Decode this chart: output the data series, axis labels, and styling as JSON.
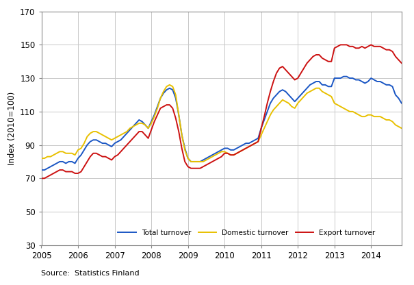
{
  "title": "",
  "ylabel": "Index (2010=100)",
  "source_text": "Source:  Statistics Finland",
  "xlim": [
    2005.0,
    2014.833
  ],
  "ylim": [
    30,
    170
  ],
  "yticks": [
    30,
    50,
    70,
    90,
    110,
    130,
    150,
    170
  ],
  "xticks": [
    2005,
    2006,
    2007,
    2008,
    2009,
    2010,
    2011,
    2012,
    2013,
    2014
  ],
  "grid_color": "#c8c8c8",
  "bg_color": "#ffffff",
  "colors": {
    "total": "#1a56c4",
    "domestic": "#e8c000",
    "export": "#cc1111"
  },
  "linewidth": 1.4,
  "legend_labels": [
    "Total turnover",
    "Domestic turnover",
    "Export turnover"
  ],
  "total_turnover": [
    75,
    75,
    76,
    77,
    78,
    79,
    80,
    80,
    79,
    80,
    80,
    79,
    82,
    84,
    87,
    90,
    92,
    93,
    93,
    92,
    91,
    91,
    90,
    89,
    91,
    92,
    93,
    95,
    97,
    99,
    101,
    103,
    105,
    104,
    102,
    100,
    104,
    108,
    113,
    118,
    121,
    123,
    124,
    123,
    118,
    108,
    96,
    88,
    82,
    80,
    80,
    80,
    80,
    81,
    82,
    83,
    84,
    85,
    86,
    87,
    88,
    88,
    87,
    87,
    88,
    89,
    90,
    91,
    91,
    92,
    93,
    94,
    100,
    105,
    110,
    115,
    118,
    120,
    122,
    123,
    122,
    120,
    118,
    116,
    118,
    120,
    122,
    124,
    126,
    127,
    128,
    128,
    126,
    126,
    125,
    125,
    130,
    130,
    130,
    131,
    131,
    130,
    130,
    129,
    129,
    128,
    127,
    128,
    130,
    129,
    128,
    128,
    127,
    126,
    126,
    125,
    120,
    118,
    115,
    113
  ],
  "domestic_turnover": [
    82,
    82,
    83,
    83,
    84,
    85,
    86,
    86,
    85,
    85,
    85,
    84,
    87,
    88,
    91,
    95,
    97,
    98,
    98,
    97,
    96,
    95,
    94,
    93,
    94,
    95,
    96,
    97,
    98,
    100,
    101,
    102,
    103,
    103,
    102,
    100,
    103,
    107,
    112,
    118,
    122,
    125,
    126,
    125,
    120,
    108,
    96,
    87,
    82,
    80,
    80,
    80,
    80,
    80,
    81,
    82,
    83,
    84,
    85,
    86,
    86,
    85,
    84,
    84,
    85,
    86,
    87,
    88,
    89,
    90,
    91,
    92,
    96,
    100,
    104,
    108,
    111,
    113,
    115,
    117,
    116,
    115,
    113,
    112,
    115,
    117,
    119,
    121,
    122,
    123,
    124,
    124,
    122,
    121,
    120,
    119,
    115,
    114,
    113,
    112,
    111,
    110,
    110,
    109,
    108,
    107,
    107,
    108,
    108,
    107,
    107,
    107,
    106,
    105,
    105,
    104,
    102,
    101,
    100,
    100
  ],
  "export_turnover": [
    70,
    70,
    71,
    72,
    73,
    74,
    75,
    75,
    74,
    74,
    74,
    73,
    73,
    74,
    77,
    80,
    83,
    85,
    85,
    84,
    83,
    83,
    82,
    81,
    83,
    84,
    86,
    88,
    90,
    92,
    94,
    96,
    98,
    98,
    96,
    94,
    99,
    104,
    108,
    112,
    113,
    114,
    114,
    112,
    106,
    98,
    88,
    80,
    77,
    76,
    76,
    76,
    76,
    77,
    78,
    79,
    80,
    81,
    82,
    83,
    85,
    85,
    84,
    84,
    85,
    86,
    87,
    88,
    89,
    90,
    91,
    92,
    100,
    107,
    115,
    122,
    128,
    133,
    136,
    137,
    135,
    133,
    131,
    129,
    130,
    133,
    136,
    139,
    141,
    143,
    144,
    144,
    142,
    141,
    140,
    140,
    148,
    149,
    150,
    150,
    150,
    149,
    149,
    148,
    148,
    149,
    148,
    149,
    150,
    149,
    149,
    149,
    148,
    147,
    147,
    146,
    143,
    141,
    139,
    138
  ]
}
